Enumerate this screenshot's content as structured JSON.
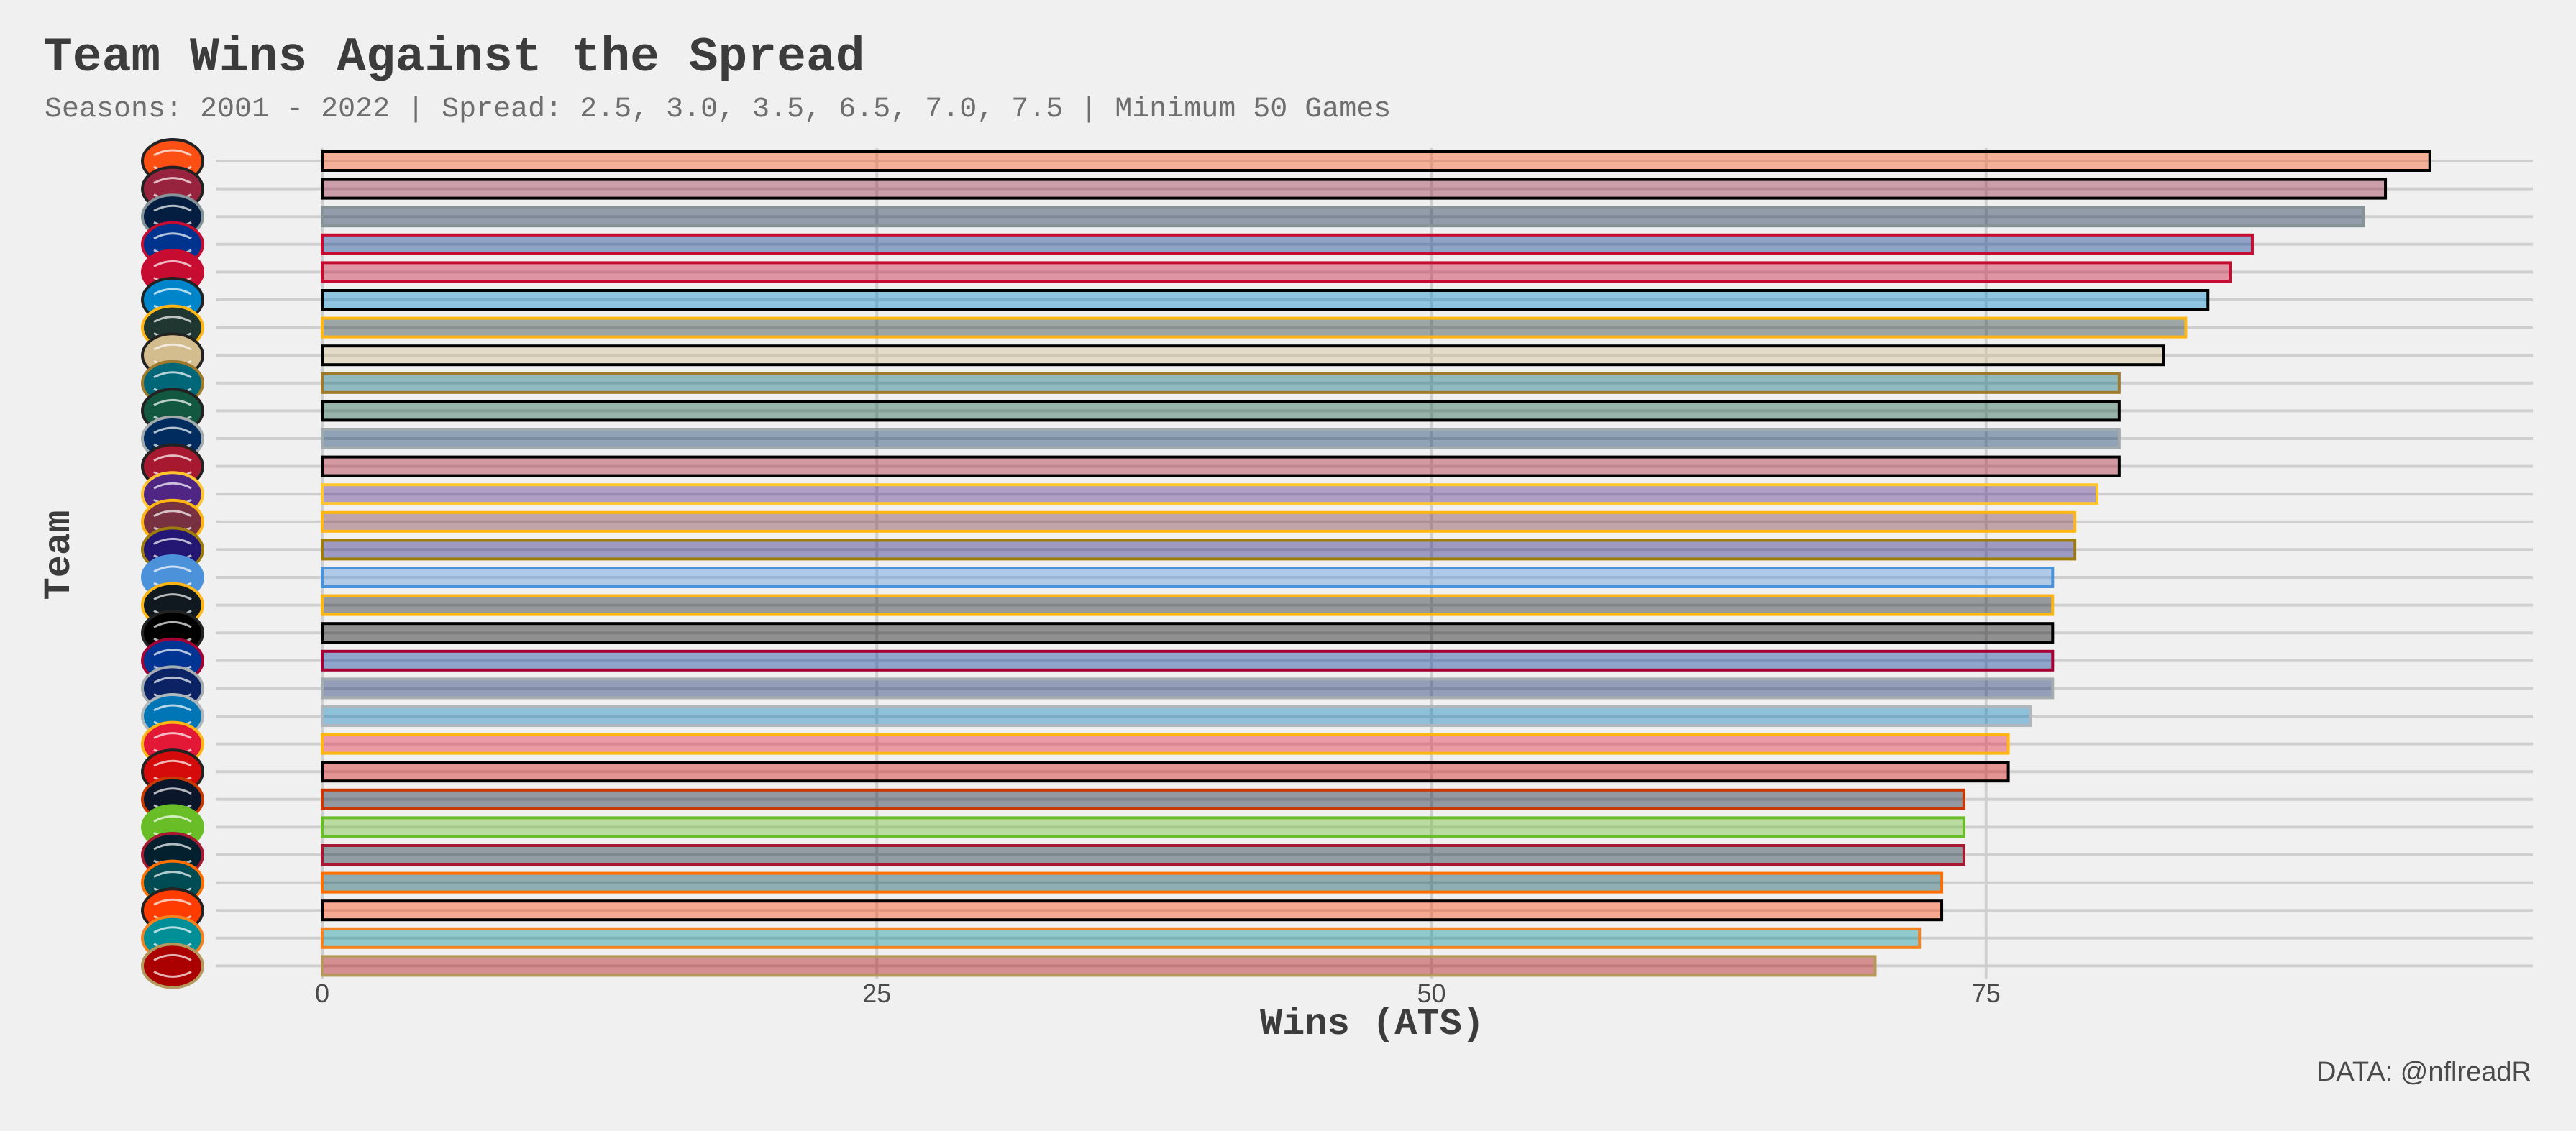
{
  "title": "Team Wins Against the Spread",
  "subtitle": "Seasons: 2001 - 2022 | Spread: 2.5, 3.0, 3.5, 6.5, 7.0, 7.5 | Minimum 50 Games",
  "caption": "DATA: @nflreadR",
  "chart_data": {
    "type": "bar",
    "orientation": "horizontal",
    "title": "Team Wins Against the Spread",
    "subtitle": "Seasons: 2001 - 2022 | Spread: 2.5, 3.0, 3.5, 6.5, 7.0, 7.5 | Minimum 50 Games",
    "xlabel": "Wins (ATS)",
    "ylabel": "Team",
    "xlim": [
      0,
      100
    ],
    "x_ticks": [
      0,
      25,
      50,
      75
    ],
    "grid": true,
    "legend": "none",
    "categories": [
      "CIN",
      "ARI",
      "DAL",
      "BUF",
      "NE",
      "CAR",
      "GB",
      "NO",
      "JAX",
      "NYJ",
      "IND",
      "ATL",
      "MIN",
      "WAS",
      "BAL",
      "TEN",
      "PIT",
      "LV",
      "LAR",
      "NYG",
      "DET",
      "KC",
      "TB",
      "CHI",
      "SEA",
      "HOU",
      "PHI",
      "CLE",
      "MIA",
      "SF"
    ],
    "values": [
      95,
      93,
      92,
      87,
      86,
      85,
      84,
      83,
      81,
      81,
      81,
      81,
      80,
      79,
      79,
      78,
      78,
      78,
      78,
      78,
      77,
      76,
      76,
      74,
      74,
      74,
      73,
      73,
      72,
      70
    ],
    "fill_colors": [
      "#fb4f14",
      "#97233f",
      "#041e42",
      "#00338d",
      "#c60c30",
      "#0085ca",
      "#203731",
      "#d3bc8d",
      "#006778",
      "#125740",
      "#002c5f",
      "#a71930",
      "#4f2683",
      "#773141",
      "#241773",
      "#4b92db",
      "#101820",
      "#000000",
      "#003594",
      "#0b2265",
      "#0076b6",
      "#e31837",
      "#d50a0a",
      "#0b162a",
      "#69be28",
      "#03202f",
      "#004c54",
      "#ff3c00",
      "#008e97",
      "#aa0000"
    ],
    "outline_colors": [
      "#000000",
      "#000000",
      "#869397",
      "#c60c30",
      "#c60c30",
      "#000000",
      "#ffb612",
      "#000000",
      "#9f792c",
      "#000000",
      "#a2aaad",
      "#000000",
      "#ffc62f",
      "#ffb612",
      "#9e7c0c",
      "#4b92db",
      "#ffb612",
      "#000000",
      "#a50034",
      "#a5acaf",
      "#b0b7bc",
      "#ffb612",
      "#000000",
      "#c83803",
      "#69be28",
      "#a71930",
      "#ff6f00",
      "#000000",
      "#f58220",
      "#b3995d"
    ],
    "logo_names": [
      "bengals-logo",
      "cardinals-logo",
      "cowboys-logo",
      "bills-logo",
      "patriots-logo",
      "panthers-logo",
      "packers-logo",
      "saints-logo",
      "jaguars-logo",
      "jets-logo",
      "colts-logo",
      "falcons-logo",
      "vikings-logo",
      "commanders-logo",
      "ravens-logo",
      "titans-logo",
      "steelers-logo",
      "raiders-logo",
      "rams-logo",
      "giants-logo",
      "lions-logo",
      "chiefs-logo",
      "buccaneers-logo",
      "bears-logo",
      "seahawks-logo",
      "texans-logo",
      "eagles-logo",
      "browns-logo",
      "dolphins-logo",
      "49ers-logo"
    ]
  }
}
